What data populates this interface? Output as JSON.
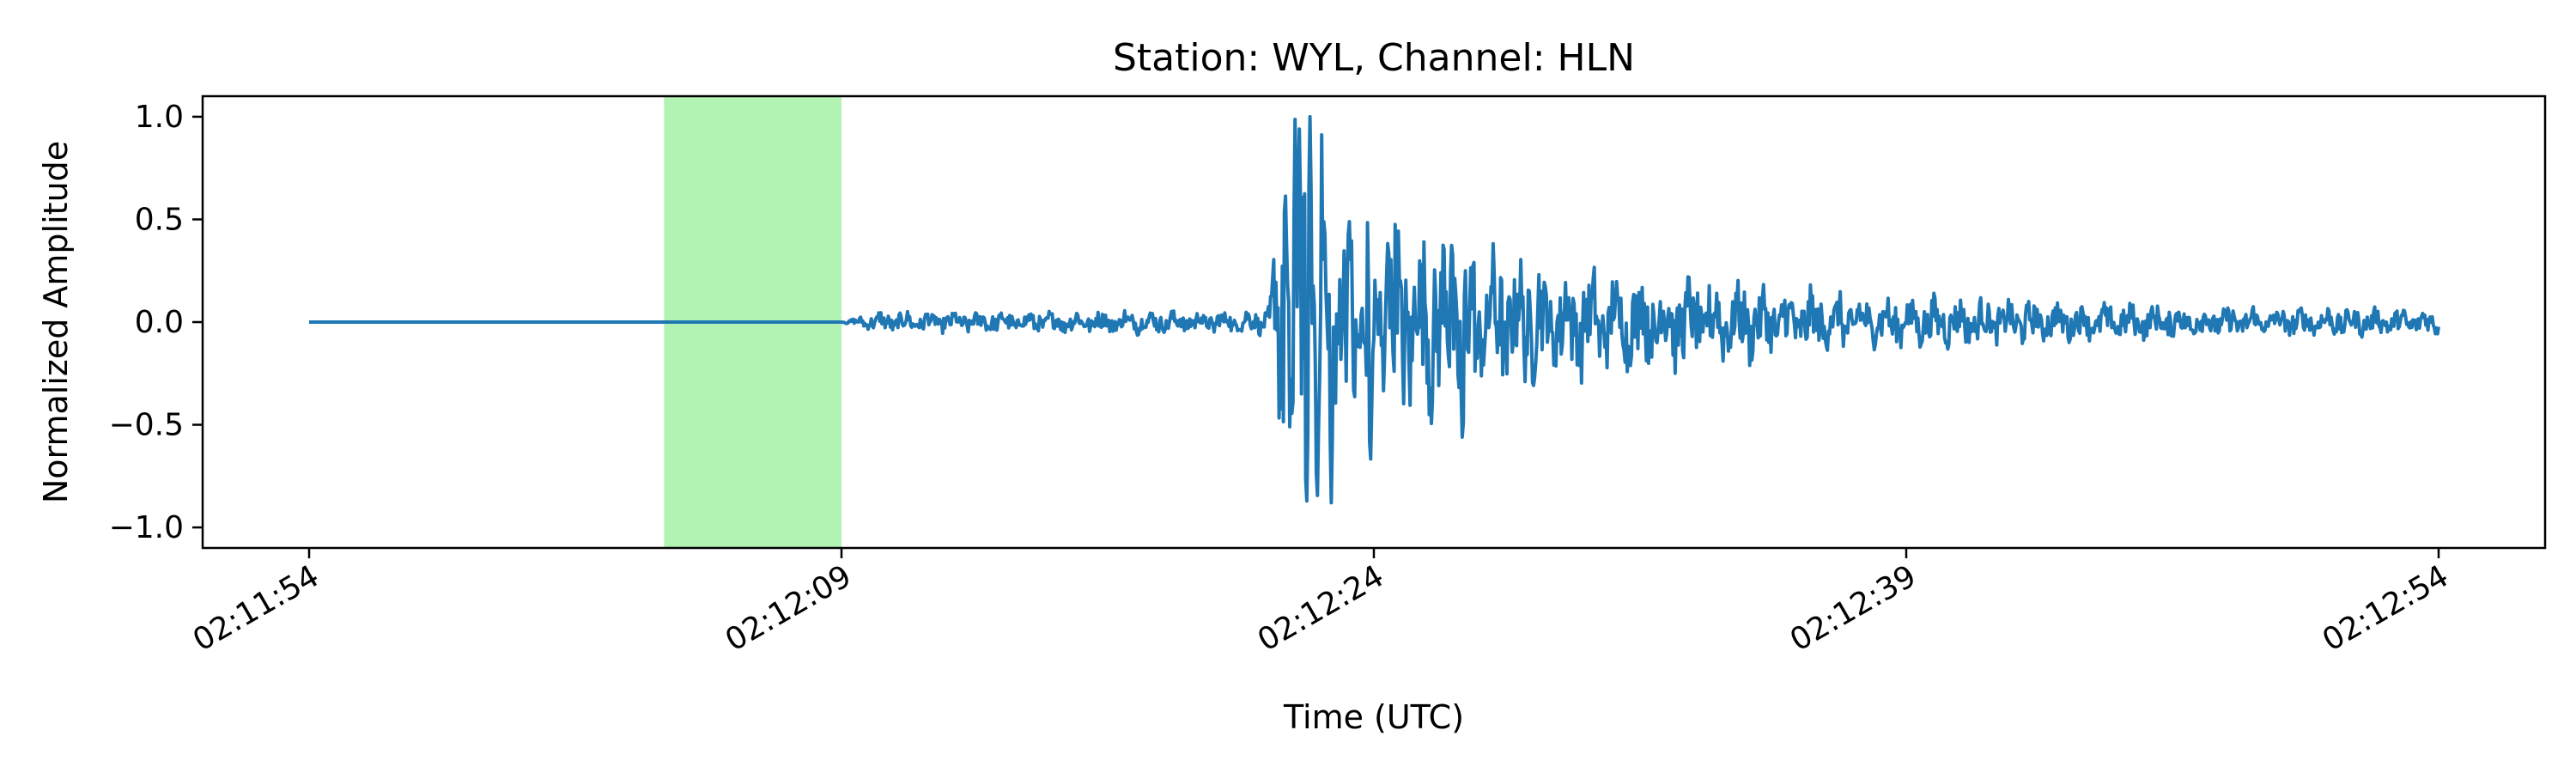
{
  "chart_data": {
    "type": "line",
    "title": "Station: WYL, Channel: HLN",
    "xlabel": "Time (UTC)",
    "ylabel": "Normalized Amplitude",
    "x_unit": "UTC time",
    "x_range": [
      "02:11:54",
      "02:12:54"
    ],
    "xlim": [
      "02:11:51",
      "02:12:57"
    ],
    "ylim": [
      -1.1,
      1.1
    ],
    "x_ticks": [
      "02:11:54",
      "02:12:09",
      "02:12:24",
      "02:12:39",
      "02:12:54"
    ],
    "y_ticks": [
      {
        "value": 1.0,
        "label": "1.0"
      },
      {
        "value": 0.5,
        "label": "0.5"
      },
      {
        "value": 0.0,
        "label": "0.0"
      },
      {
        "value": -0.5,
        "label": "−0.5"
      },
      {
        "value": -1.0,
        "label": "−1.0"
      }
    ],
    "grid": false,
    "legend": "none",
    "highlight": {
      "start": "02:12:04",
      "end": "02:12:09",
      "color": "#b2f2b2"
    },
    "series": [
      {
        "color": "#1f77b4",
        "envelope": [
          {
            "t": "02:11:54",
            "amp": 0.0
          },
          {
            "t": "02:12:09",
            "amp": 0.0
          },
          {
            "t": "02:12:10",
            "amp": 0.05
          },
          {
            "t": "02:12:21",
            "amp": 0.06
          },
          {
            "t": "02:12:21.5",
            "amp": 0.9
          },
          {
            "t": "02:12:22",
            "amp": 1.0
          },
          {
            "t": "02:12:23",
            "amp": 0.6
          },
          {
            "t": "02:12:26",
            "amp": 0.45
          },
          {
            "t": "02:12:29",
            "amp": 0.28
          },
          {
            "t": "02:12:33",
            "amp": 0.22
          },
          {
            "t": "02:12:38",
            "amp": 0.13
          },
          {
            "t": "02:12:45",
            "amp": 0.09
          },
          {
            "t": "02:12:54",
            "amp": 0.06
          }
        ],
        "peaks": [
          {
            "t": "02:12:21.5",
            "value": 0.69
          },
          {
            "t": "02:12:21.7",
            "value": -0.5
          },
          {
            "t": "02:12:21.9",
            "value": 0.94
          },
          {
            "t": "02:12:22.1",
            "value": -0.98
          },
          {
            "t": "02:12:22.2",
            "value": 1.0
          },
          {
            "t": "02:12:22.4",
            "value": -0.95
          },
          {
            "t": "02:12:22.6",
            "value": 0.55
          },
          {
            "t": "02:12:22.8",
            "value": -0.88
          },
          {
            "t": "02:12:23.3",
            "value": 0.55
          },
          {
            "t": "02:12:23.9",
            "value": -0.75
          },
          {
            "t": "02:12:24.4",
            "value": 0.43
          },
          {
            "t": "02:12:26.5",
            "value": -0.63
          },
          {
            "t": "02:12:26.2",
            "value": 0.42
          }
        ]
      }
    ]
  }
}
